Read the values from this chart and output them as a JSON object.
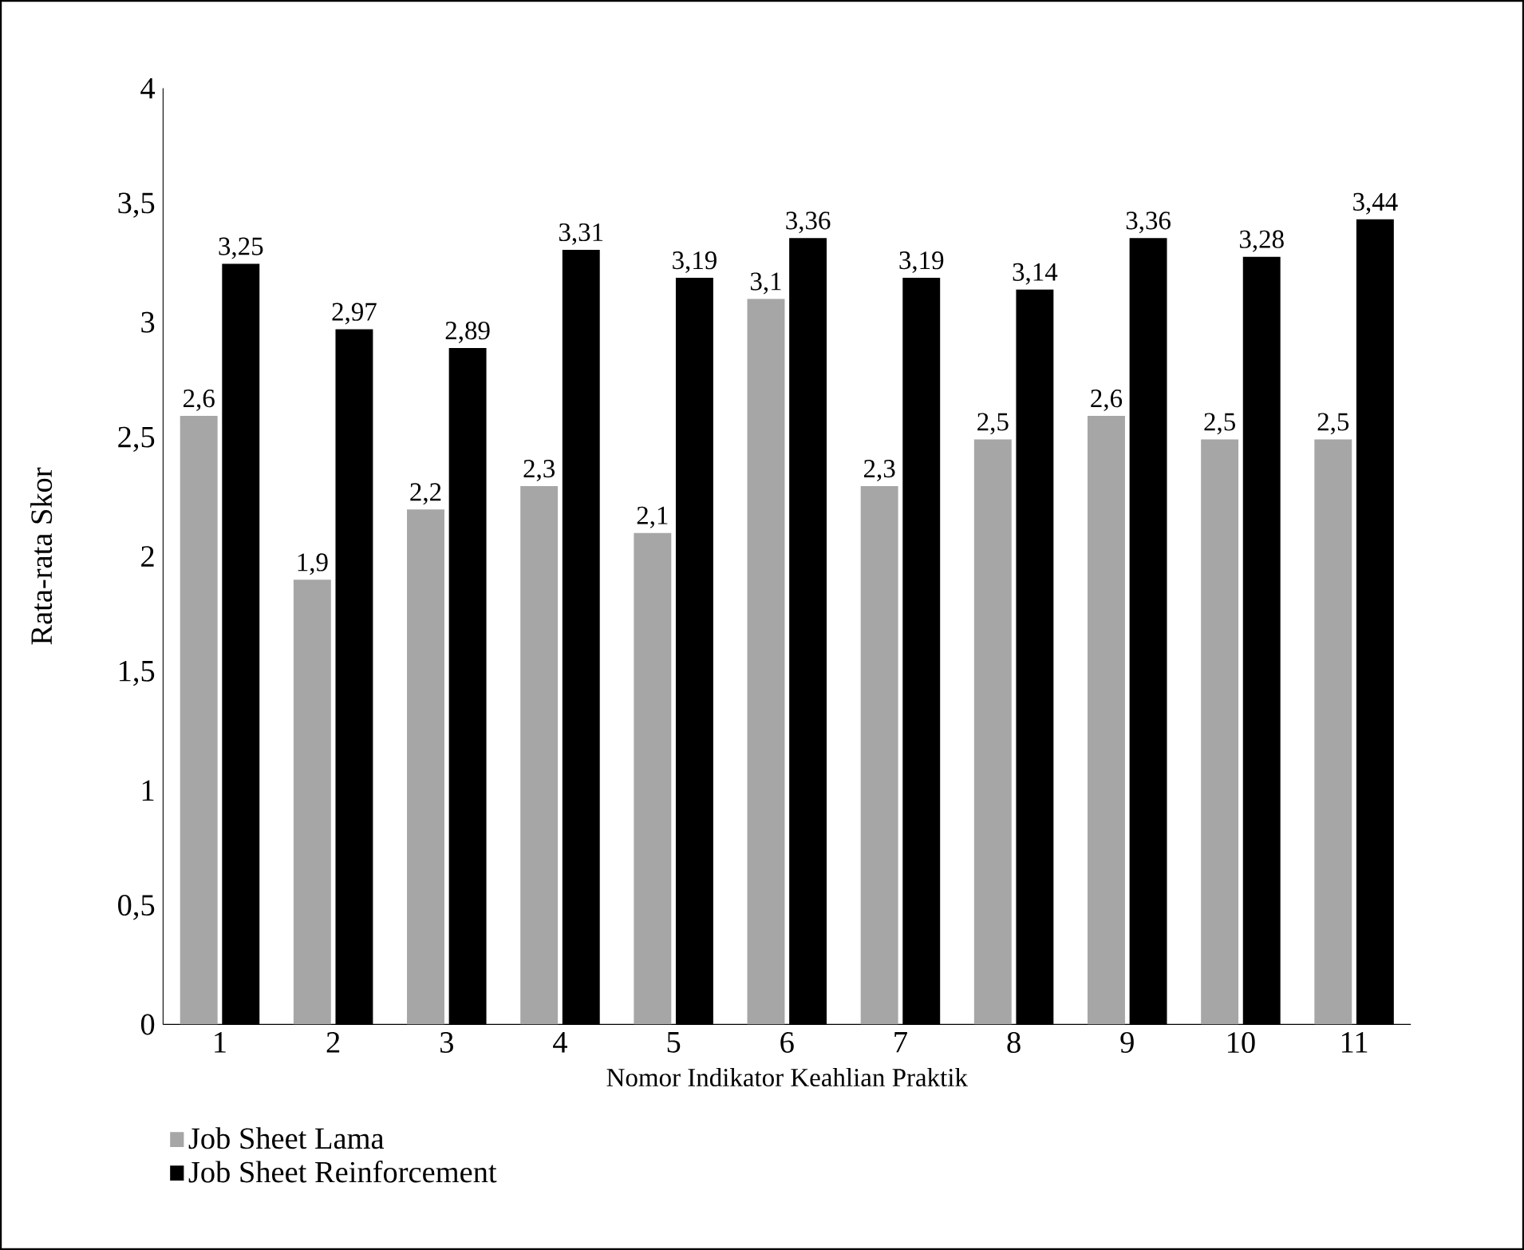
{
  "chart_data": {
    "type": "bar",
    "xlabel": "Nomor Indikator Keahlian Praktik",
    "ylabel": "Rata-rata Skor",
    "categories": [
      "1",
      "2",
      "3",
      "4",
      "5",
      "6",
      "7",
      "8",
      "9",
      "10",
      "11"
    ],
    "ylim": [
      0,
      4
    ],
    "yticks": [
      0,
      {
        "value": 0.5,
        "label": "0,5"
      },
      1,
      {
        "value": 1.5,
        "label": "1,5"
      },
      2,
      {
        "value": 2.5,
        "label": "2,5"
      },
      3,
      {
        "value": 3.5,
        "label": "3,5"
      },
      4
    ],
    "legend": "bottom left",
    "grid": false,
    "series": [
      {
        "name": "Job Sheet Lama",
        "color": "#a6a6a6",
        "values": [
          2.6,
          1.9,
          2.2,
          2.3,
          2.1,
          3.1,
          2.3,
          2.5,
          2.6,
          2.5,
          2.5
        ],
        "value_labels": [
          "2,6",
          "1,9",
          "2,2",
          "2,3",
          "2,1",
          "3,1",
          "2,3",
          "2,5",
          "2,6",
          "2,5",
          "2,5"
        ]
      },
      {
        "name": "Job Sheet Reinforcement",
        "color": "#000000",
        "values": [
          3.25,
          2.97,
          2.89,
          3.31,
          3.19,
          3.36,
          3.19,
          3.14,
          3.36,
          3.28,
          3.44
        ],
        "value_labels": [
          "3,25",
          "2,97",
          "2,89",
          "3,31",
          "3,19",
          "3,36",
          "3,19",
          "3,14",
          "3,36",
          "3,28",
          "3,44"
        ]
      }
    ]
  }
}
